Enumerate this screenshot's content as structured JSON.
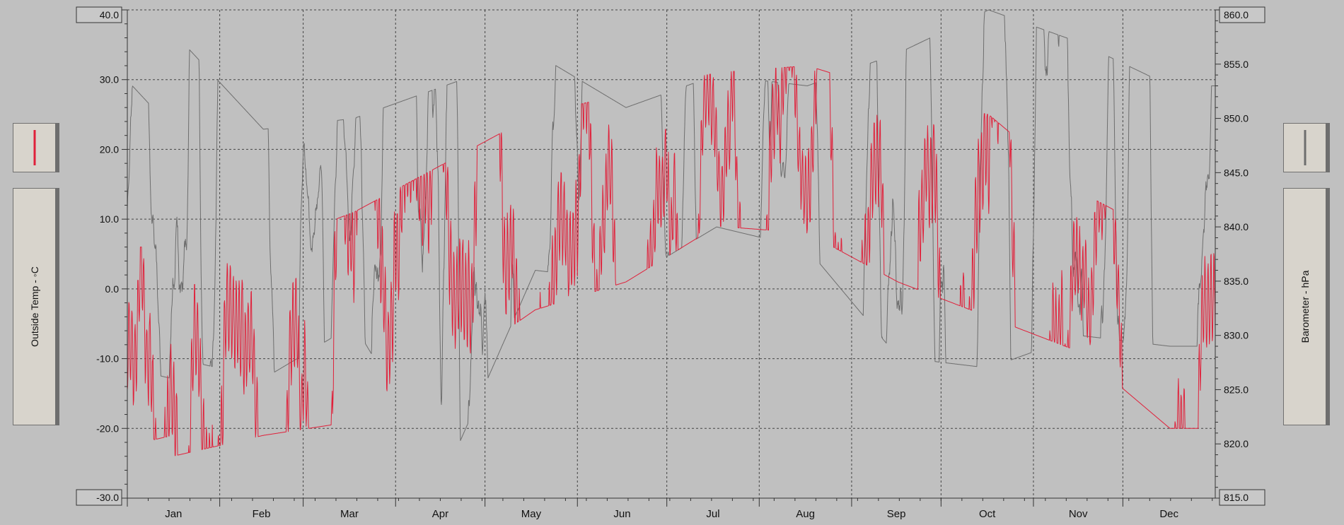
{
  "chart_data": {
    "type": "line",
    "title": "",
    "x_categories": [
      "Jan",
      "Feb",
      "Mar",
      "Apr",
      "May",
      "Jun",
      "Jul",
      "Aug",
      "Sep",
      "Oct",
      "Nov",
      "Dec"
    ],
    "xlabel": "",
    "left_axis": {
      "label": "Outside Temp - ◦C",
      "ylim": [
        -30,
        40
      ],
      "ticks": [
        "-30.0",
        "-20.0",
        "-10.0",
        "0.0",
        "10.0",
        "20.0",
        "30.0",
        "40.0"
      ]
    },
    "right_axis": {
      "label": "Barometer - hPa",
      "ylim": [
        815,
        860
      ],
      "ticks": [
        "815.0",
        "820.0",
        "825.0",
        "830.0",
        "835.0",
        "840.0",
        "845.0",
        "850.0",
        "855.0",
        "860.0"
      ]
    },
    "grid": true,
    "series": [
      {
        "axis": "left",
        "color": "#e0203a",
        "monthly_approx": {
          "Jan": {
            "mean": -8,
            "min": -24,
            "max": 6
          },
          "Feb": {
            "mean": -8,
            "min": -21,
            "max": 6
          },
          "Mar": {
            "mean": -2,
            "min": -19,
            "max": 11
          },
          "Apr": {
            "mean": 3,
            "min": -12,
            "max": 18
          },
          "May": {
            "mean": 10,
            "min": -3,
            "max": 25
          },
          "Jun": {
            "mean": 14,
            "min": 1,
            "max": 28
          },
          "Jul": {
            "mean": 17,
            "min": 9,
            "max": 31
          },
          "Aug": {
            "mean": 18,
            "min": 8,
            "max": 32
          },
          "Sep": {
            "mean": 14,
            "min": 1,
            "max": 28
          },
          "Oct": {
            "mean": 8,
            "min": -4,
            "max": 25
          },
          "Nov": {
            "mean": 2,
            "min": -9,
            "max": 14
          },
          "Dec": {
            "mean": -5,
            "min": -20,
            "max": 7
          }
        }
      },
      {
        "axis": "right",
        "color": "#6e6e6e",
        "monthly_approx": {
          "Jan": {
            "mean": 843,
            "min": 828,
            "max": 858
          },
          "Feb": {
            "mean": 840,
            "min": 826,
            "max": 849
          },
          "Mar": {
            "mean": 842,
            "min": 831,
            "max": 850
          },
          "Apr": {
            "mean": 840,
            "min": 817,
            "max": 853
          },
          "May": {
            "mean": 846,
            "min": 836,
            "max": 856
          },
          "Jun": {
            "mean": 844,
            "min": 835,
            "max": 851
          },
          "Jul": {
            "mean": 848,
            "min": 840,
            "max": 854
          },
          "Aug": {
            "mean": 848,
            "min": 838,
            "max": 853
          },
          "Sep": {
            "mean": 847,
            "min": 828,
            "max": 856
          },
          "Oct": {
            "mean": 848,
            "min": 827,
            "max": 860
          },
          "Nov": {
            "mean": 846,
            "min": 830,
            "max": 857
          },
          "Dec": {
            "mean": 838,
            "min": 829,
            "max": 853
          }
        }
      }
    ]
  },
  "legend": {
    "temp_swatch_color": "#e0203a",
    "baro_swatch_color": "#6e6e6e"
  }
}
